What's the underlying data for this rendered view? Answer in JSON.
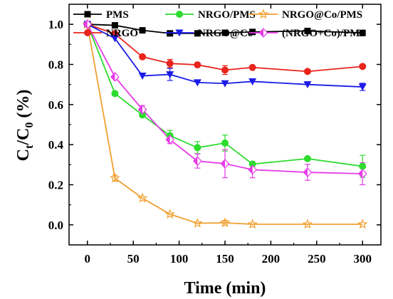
{
  "chart_data": {
    "type": "line",
    "xlabel": "Time (min)",
    "ylabel_main": "C",
    "ylabel_sub1": "t",
    "ylabel_mid": "/C",
    "ylabel_sub2": "0",
    "ylabel_tail": " (%)",
    "xlim": [
      -20,
      320
    ],
    "ylim": [
      -0.1,
      1.1
    ],
    "x_ticks": [
      0,
      50,
      100,
      150,
      200,
      250,
      300
    ],
    "x_tick_labels": [
      "0",
      "50",
      "100",
      "150",
      "200",
      "250",
      "300"
    ],
    "y_ticks": [
      0.0,
      0.2,
      0.4,
      0.6,
      0.8,
      1.0
    ],
    "y_tick_labels": [
      "0.0",
      "0.2",
      "0.4",
      "0.6",
      "0.8",
      "1.0"
    ],
    "grid": false,
    "legend_position": "top",
    "series": [
      {
        "name": "PMS",
        "color": "#000000",
        "marker": "square",
        "x": [
          0,
          30,
          60,
          90,
          120,
          150,
          180,
          240,
          300
        ],
        "y": [
          1.0,
          0.995,
          0.97,
          0.955,
          0.955,
          0.958,
          0.962,
          0.967,
          0.957
        ],
        "err": [
          0,
          0,
          0,
          0,
          0,
          0,
          0,
          0,
          0
        ]
      },
      {
        "name": "NRGO",
        "color": "#e8241c",
        "marker": "circle",
        "x": [
          0,
          30,
          60,
          90,
          120,
          150,
          180,
          240,
          300
        ],
        "y": [
          1.0,
          0.953,
          0.838,
          0.805,
          0.798,
          0.772,
          0.785,
          0.765,
          0.79
        ],
        "err": [
          0,
          0,
          0,
          0.02,
          0,
          0.022,
          0,
          0,
          0
        ]
      },
      {
        "name": "NRGO/PMS",
        "color": "#2ddc2d",
        "marker": "circle",
        "x": [
          0,
          30,
          60,
          90,
          120,
          150,
          180,
          240,
          300
        ],
        "y": [
          1.0,
          0.655,
          0.548,
          0.445,
          0.385,
          0.408,
          0.303,
          0.33,
          0.292
        ],
        "err": [
          0,
          0,
          0,
          0.025,
          0.03,
          0.04,
          0,
          0,
          0.055
        ]
      },
      {
        "name": "NRGO@Co",
        "color": "#1c1ce8",
        "marker": "triangle-down",
        "x": [
          0,
          30,
          60,
          90,
          120,
          150,
          180,
          240,
          300
        ],
        "y": [
          1.0,
          0.93,
          0.743,
          0.75,
          0.71,
          0.705,
          0.715,
          0.7,
          0.688
        ],
        "err": [
          0,
          0,
          0,
          0.03,
          0,
          0,
          0,
          0,
          0.018
        ]
      },
      {
        "name": "NRGO@Co/PMS",
        "color": "#f0a030",
        "marker": "star",
        "x": [
          0,
          30,
          60,
          90,
          120,
          150,
          180,
          240,
          300
        ],
        "y": [
          1.0,
          0.233,
          0.133,
          0.053,
          0.008,
          0.01,
          0.003,
          0.003,
          0.003
        ],
        "err": [
          0,
          0.015,
          0,
          0,
          0,
          0.012,
          0,
          0,
          0
        ]
      },
      {
        "name": "(NRGO+Co)/PMS",
        "color": "#e63ae6",
        "marker": "half-diamond",
        "x": [
          0,
          30,
          60,
          90,
          120,
          150,
          180,
          240,
          300
        ],
        "y": [
          1.0,
          0.738,
          0.575,
          0.425,
          0.318,
          0.305,
          0.275,
          0.262,
          0.255
        ],
        "err": [
          0,
          0,
          0.02,
          0.02,
          0.035,
          0.07,
          0.04,
          0.04,
          0.055
        ]
      }
    ]
  }
}
